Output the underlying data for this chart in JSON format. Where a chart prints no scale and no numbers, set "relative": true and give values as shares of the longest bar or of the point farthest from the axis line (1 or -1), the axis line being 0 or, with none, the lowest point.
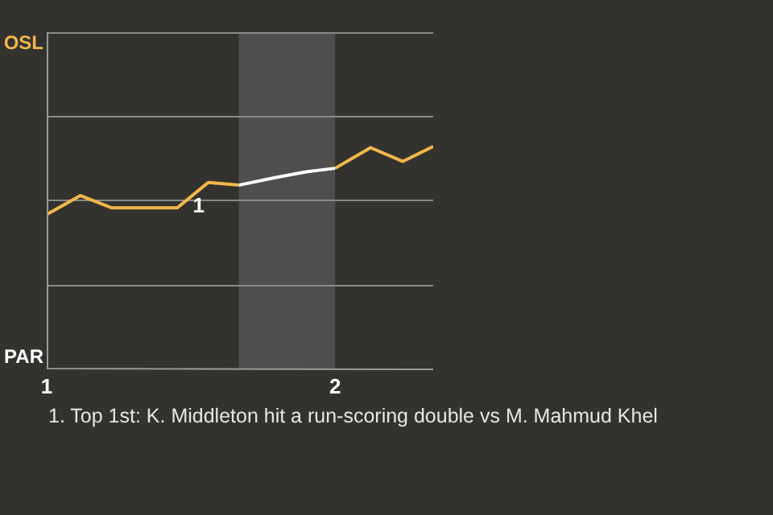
{
  "chart_data": {
    "type": "line",
    "relative": true,
    "xlim": [
      1,
      2.34
    ],
    "xticks": [
      1,
      2
    ],
    "series": [
      {
        "color": "#f2b84b",
        "x": [
          1,
          1.117,
          1.225,
          1.453,
          1.56,
          1.666
        ],
        "values": [
          0.694,
          0.779,
          0.724,
          0.724,
          0.838,
          0.826
        ]
      },
      {
        "color": "#ffffff",
        "x": [
          1.666,
          1.788,
          1.9,
          2.0
        ],
        "values": [
          0.826,
          0.859,
          0.886,
          0.902
        ]
      },
      {
        "color": "#f2b84b",
        "x": [
          2.0,
          2.123,
          2.235,
          2.34
        ],
        "values": [
          0.902,
          0.995,
          0.933,
          1
        ]
      }
    ],
    "bands": [
      {
        "axis": "x",
        "from": 1.666,
        "to": 2.0,
        "color": "#4f4e4c"
      }
    ],
    "ref_lines": [
      {
        "axis": "y",
        "value": 0.379,
        "color": "#8a8a8a"
      },
      {
        "axis": "y",
        "value": 0.758,
        "color": "#8a8a8a"
      },
      {
        "axis": "y",
        "value": 1.136,
        "color": "#8a8a8a"
      },
      {
        "axis": "y",
        "value": 1.515,
        "color": "#8a8a8a"
      }
    ],
    "legend": false,
    "annotations": [
      "OSL",
      "PAR",
      {
        "text": "1",
        "x": 1.56,
        "y": 0.838
      },
      "1. Top 1st: K. Middleton hit a run-scoring double vs M. Mahmud Khel"
    ]
  }
}
